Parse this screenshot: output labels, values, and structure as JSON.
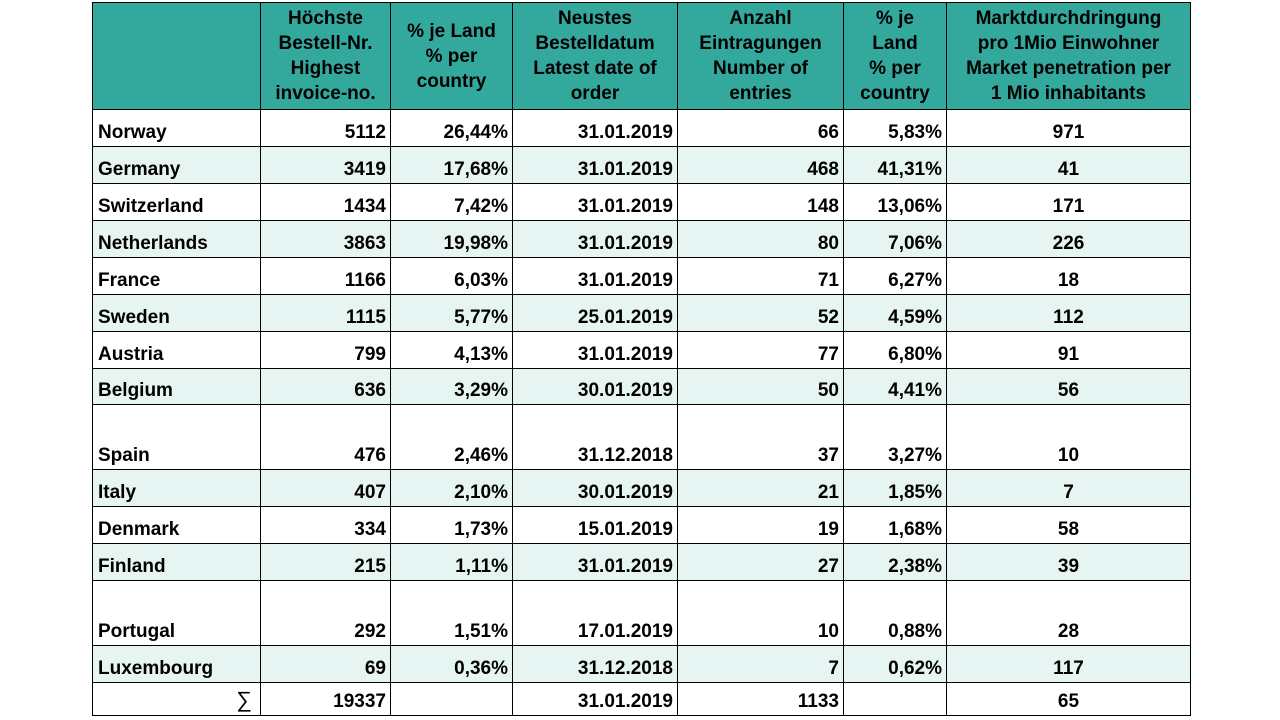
{
  "chart_data": {
    "type": "table",
    "columns": [
      {
        "lines": []
      },
      {
        "lines": [
          "Höchste",
          "Bestell-Nr.",
          "Highest",
          "invoice-no."
        ]
      },
      {
        "lines": [
          "% je Land",
          "% per",
          "country"
        ]
      },
      {
        "lines": [
          "Neustes",
          "Bestelldatum",
          "Latest date of",
          "order"
        ]
      },
      {
        "lines": [
          "Anzahl",
          "Eintragungen",
          "Number of",
          "entries"
        ]
      },
      {
        "lines": [
          "% je",
          "Land",
          "% per",
          "country"
        ]
      },
      {
        "lines": [
          "Marktdurchdringung",
          "pro 1Mio Einwohner",
          "Market penetration per",
          "1 Mio inhabitants"
        ]
      }
    ],
    "rows": [
      {
        "country": "Norway",
        "invoice": "5112",
        "pct_invoice": "26,44%",
        "date": "31.01.2019",
        "entries": "66",
        "pct_entries": "5,83%",
        "penetration": "971"
      },
      {
        "country": "Germany",
        "invoice": "3419",
        "pct_invoice": "17,68%",
        "date": "31.01.2019",
        "entries": "468",
        "pct_entries": "41,31%",
        "penetration": "41"
      },
      {
        "country": "Switzerland",
        "invoice": "1434",
        "pct_invoice": "7,42%",
        "date": "31.01.2019",
        "entries": "148",
        "pct_entries": "13,06%",
        "penetration": "171"
      },
      {
        "country": "Netherlands",
        "invoice": "3863",
        "pct_invoice": "19,98%",
        "date": "31.01.2019",
        "entries": "80",
        "pct_entries": "7,06%",
        "penetration": "226"
      },
      {
        "country": "France",
        "invoice": "1166",
        "pct_invoice": "6,03%",
        "date": "31.01.2019",
        "entries": "71",
        "pct_entries": "6,27%",
        "penetration": "18"
      },
      {
        "country": "Sweden",
        "invoice": "1115",
        "pct_invoice": "5,77%",
        "date": "25.01.2019",
        "entries": "52",
        "pct_entries": "4,59%",
        "penetration": "112"
      },
      {
        "country": "Austria",
        "invoice": "799",
        "pct_invoice": "4,13%",
        "date": "31.01.2019",
        "entries": "77",
        "pct_entries": "6,80%",
        "penetration": "91"
      },
      {
        "country": "Belgium",
        "invoice": "636",
        "pct_invoice": "3,29%",
        "date": "30.01.2019",
        "entries": "50",
        "pct_entries": "4,41%",
        "penetration": "56"
      },
      {
        "country": "Spain",
        "invoice": "476",
        "pct_invoice": "2,46%",
        "date": "31.12.2018",
        "entries": "37",
        "pct_entries": "3,27%",
        "penetration": "10"
      },
      {
        "country": "Italy",
        "invoice": "407",
        "pct_invoice": "2,10%",
        "date": "30.01.2019",
        "entries": "21",
        "pct_entries": "1,85%",
        "penetration": "7"
      },
      {
        "country": "Denmark",
        "invoice": "334",
        "pct_invoice": "1,73%",
        "date": "15.01.2019",
        "entries": "19",
        "pct_entries": "1,68%",
        "penetration": "58"
      },
      {
        "country": "Finland",
        "invoice": "215",
        "pct_invoice": "1,11%",
        "date": "31.01.2019",
        "entries": "27",
        "pct_entries": "2,38%",
        "penetration": "39"
      },
      {
        "country": "Portugal",
        "invoice": "292",
        "pct_invoice": "1,51%",
        "date": "17.01.2019",
        "entries": "10",
        "pct_entries": "0,88%",
        "penetration": "28"
      },
      {
        "country": "Luxembourg",
        "invoice": "69",
        "pct_invoice": "0,36%",
        "date": "31.12.2018",
        "entries": "7",
        "pct_entries": "0,62%",
        "penetration": "117"
      }
    ],
    "total": {
      "symbol": "∑",
      "invoice": "19337",
      "pct_invoice": "",
      "date": "31.01.2019",
      "entries": "1133",
      "pct_entries": "",
      "penetration": "65"
    },
    "colors": {
      "header": "#33a89c",
      "shaded_row": "#e6f4f2",
      "border": "#000000"
    }
  }
}
